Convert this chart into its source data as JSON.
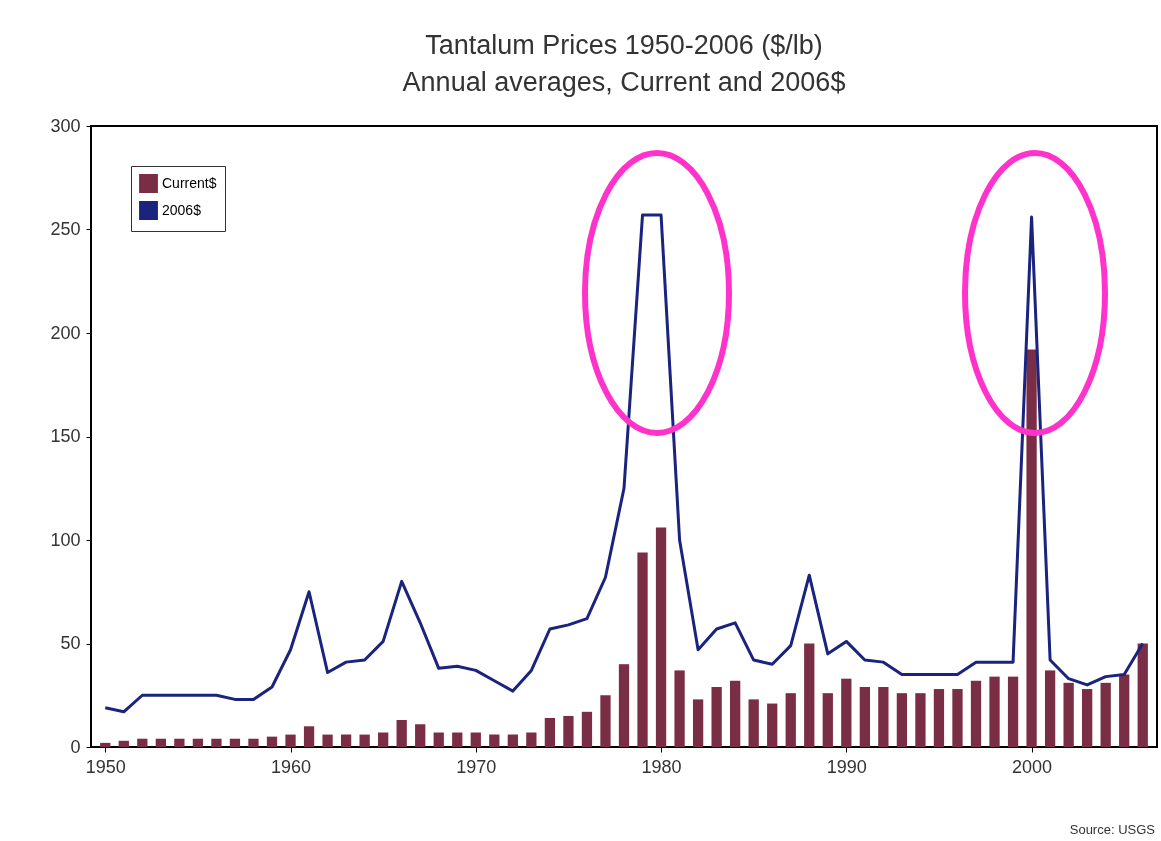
{
  "chart_data": {
    "type": "bar",
    "title": "Tantalum Prices 1950-2006 ($/lb)",
    "subtitle": "Annual averages, Current and 2006$",
    "x": [
      1950,
      1951,
      1952,
      1953,
      1954,
      1955,
      1956,
      1957,
      1958,
      1959,
      1960,
      1961,
      1962,
      1963,
      1964,
      1965,
      1966,
      1967,
      1968,
      1969,
      1970,
      1971,
      1972,
      1973,
      1974,
      1975,
      1976,
      1977,
      1978,
      1979,
      1980,
      1981,
      1982,
      1983,
      1984,
      1985,
      1986,
      1987,
      1988,
      1989,
      1990,
      1991,
      1992,
      1993,
      1994,
      1995,
      1996,
      1997,
      1998,
      1999,
      2000,
      2001,
      2002,
      2003,
      2004,
      2005,
      2006
    ],
    "series": [
      {
        "name": "Current$",
        "color": "#7a2e45",
        "values": [
          2,
          3,
          4,
          4,
          4,
          4,
          4,
          4,
          4,
          5,
          6,
          10,
          6,
          6,
          6,
          7,
          13,
          11,
          7,
          7,
          7,
          6,
          6,
          7,
          14,
          15,
          17,
          25,
          40,
          94,
          106,
          37,
          23,
          29,
          32,
          23,
          21,
          26,
          50,
          26,
          33,
          29,
          29,
          26,
          26,
          28,
          28,
          32,
          34,
          34,
          192,
          37,
          31,
          28,
          31,
          35,
          50
        ]
      },
      {
        "type": "line",
        "name": "2006$",
        "color": "#1a237e",
        "values": [
          19,
          17,
          25,
          25,
          25,
          25,
          25,
          23,
          23,
          29,
          47,
          75,
          36,
          41,
          42,
          51,
          80,
          60,
          38,
          39,
          37,
          32,
          27,
          37,
          57,
          59,
          62,
          82,
          125,
          257,
          257,
          100,
          47,
          57,
          60,
          42,
          40,
          49,
          83,
          45,
          51,
          42,
          41,
          35,
          35,
          35,
          35,
          41,
          41,
          41,
          256,
          42,
          33,
          30,
          34,
          35,
          50
        ]
      }
    ],
    "xlim": [
      1949.5,
      2006.5
    ],
    "xticks": [
      1950,
      1960,
      1970,
      1980,
      1990,
      2000
    ],
    "ylim": [
      0,
      300
    ],
    "yticks": [
      0,
      50,
      100,
      150,
      200,
      250,
      300
    ],
    "legend": "top left",
    "annotations": [
      "Source: USGS"
    ]
  }
}
